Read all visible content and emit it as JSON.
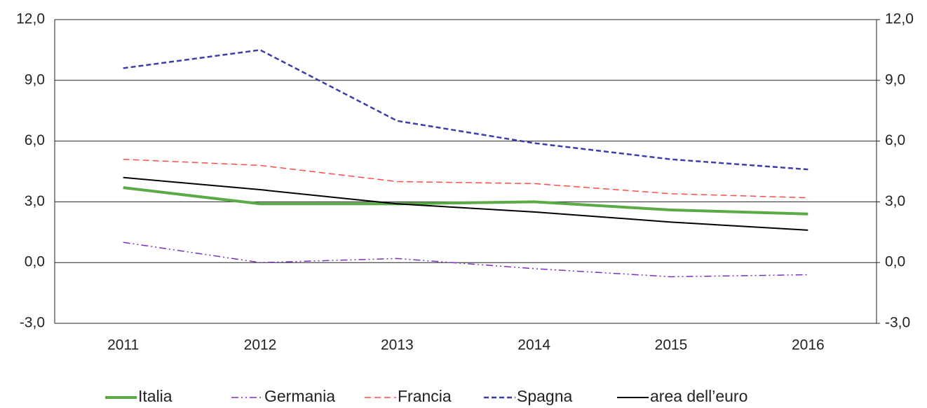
{
  "chart_data": {
    "type": "line",
    "categories": [
      "2011",
      "2012",
      "2013",
      "2014",
      "2015",
      "2016"
    ],
    "series": [
      {
        "name": "Italia",
        "color": "#5aaa46",
        "style": "solid-thick",
        "values": [
          3.7,
          2.9,
          2.9,
          3.0,
          2.6,
          2.4
        ]
      },
      {
        "name": "Germania",
        "color": "#7b2fbf",
        "style": "dash-dot",
        "values": [
          1.0,
          0.0,
          0.2,
          -0.3,
          -0.7,
          -0.6
        ]
      },
      {
        "name": "Francia",
        "color": "#ff4d4d",
        "style": "dash",
        "values": [
          5.1,
          4.8,
          4.0,
          3.9,
          3.4,
          3.2
        ]
      },
      {
        "name": "Spagna",
        "color": "#3a3fa8",
        "style": "dash-bold",
        "values": [
          9.6,
          10.5,
          7.0,
          5.9,
          5.1,
          4.6
        ]
      },
      {
        "name": "area dell’euro",
        "color": "#000000",
        "style": "solid",
        "values": [
          4.2,
          3.6,
          2.9,
          2.5,
          2.0,
          1.6
        ]
      }
    ],
    "ylim": [
      -3,
      12
    ],
    "yticks": [
      {
        "value": -3,
        "label": "-3,0"
      },
      {
        "value": 0,
        "label": "0,0"
      },
      {
        "value": 3,
        "label": "3,0"
      },
      {
        "value": 6,
        "label": "6,0"
      },
      {
        "value": 9,
        "label": "9,0"
      },
      {
        "value": 12,
        "label": "12,0"
      }
    ],
    "y2lim": [
      -3,
      12
    ],
    "y2ticks": [
      {
        "value": -3,
        "label": "-3,0"
      },
      {
        "value": 0,
        "label": "0,0"
      },
      {
        "value": 3,
        "label": "3,0"
      },
      {
        "value": 6,
        "label": "6,0"
      },
      {
        "value": 9,
        "label": "9,0"
      },
      {
        "value": 12,
        "label": "12,0"
      }
    ],
    "grid": true,
    "legend": "bottom"
  }
}
